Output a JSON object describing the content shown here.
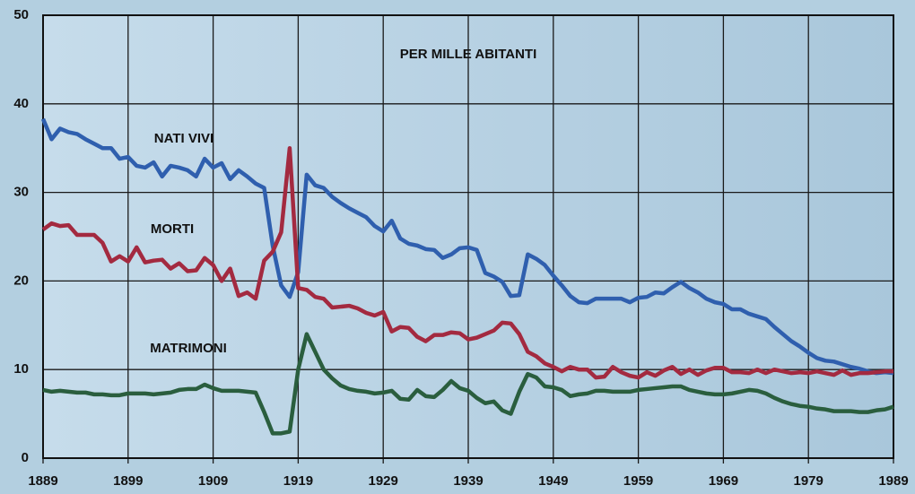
{
  "chart_data": {
    "type": "line",
    "annotations": [
      "PER MILLE ABITANTI"
    ],
    "x": [
      1889,
      1890,
      1891,
      1892,
      1893,
      1894,
      1895,
      1896,
      1897,
      1898,
      1899,
      1900,
      1901,
      1902,
      1903,
      1904,
      1905,
      1906,
      1907,
      1908,
      1909,
      1910,
      1911,
      1912,
      1913,
      1914,
      1915,
      1916,
      1917,
      1918,
      1919,
      1920,
      1921,
      1922,
      1923,
      1924,
      1925,
      1926,
      1927,
      1928,
      1929,
      1930,
      1931,
      1932,
      1933,
      1934,
      1935,
      1936,
      1937,
      1938,
      1939,
      1940,
      1941,
      1942,
      1943,
      1944,
      1945,
      1946,
      1947,
      1948,
      1949,
      1950,
      1951,
      1952,
      1953,
      1954,
      1955,
      1956,
      1957,
      1958,
      1959,
      1960,
      1961,
      1962,
      1963,
      1964,
      1965,
      1966,
      1967,
      1968,
      1969,
      1970,
      1971,
      1972,
      1973,
      1974,
      1975,
      1976,
      1977,
      1978,
      1979,
      1980,
      1981,
      1982,
      1983,
      1984,
      1985,
      1986,
      1987,
      1988,
      1989
    ],
    "series": [
      {
        "name": "NATI VIVI",
        "color": "#2f5fae",
        "values": [
          38.3,
          36,
          37.2,
          36.8,
          36.6,
          36,
          35.5,
          35,
          35,
          33.8,
          34,
          33,
          32.8,
          33.4,
          31.8,
          33,
          32.8,
          32.5,
          31.8,
          33.8,
          32.8,
          33.3,
          31.5,
          32.5,
          31.8,
          31,
          30.5,
          24,
          19.5,
          18.2,
          21,
          32,
          30.8,
          30.5,
          29.5,
          28.8,
          28.2,
          27.7,
          27.2,
          26.2,
          25.6,
          26.8,
          24.8,
          24.2,
          24,
          23.6,
          23.5,
          22.6,
          23,
          23.7,
          23.8,
          23.5,
          20.9,
          20.5,
          19.9,
          18.3,
          18.4,
          23,
          22.5,
          21.8,
          20.6,
          19.5,
          18.3,
          17.6,
          17.5,
          18,
          18,
          18,
          18,
          17.6,
          18.1,
          18.2,
          18.7,
          18.6,
          19.3,
          19.9,
          19.2,
          18.7,
          18,
          17.6,
          17.4,
          16.8,
          16.8,
          16.3,
          16,
          15.7,
          14.8,
          14,
          13.2,
          12.6,
          11.9,
          11.3,
          11,
          10.9,
          10.6,
          10.3,
          10.1,
          9.8,
          9.6,
          9.7,
          9.6
        ]
      },
      {
        "name": "MORTI",
        "color": "#a32a40",
        "values": [
          25.8,
          26.5,
          26.2,
          26.3,
          25.2,
          25.2,
          25.2,
          24.3,
          22.2,
          22.8,
          22.2,
          23.8,
          22.1,
          22.3,
          22.4,
          21.4,
          22,
          21.1,
          21.2,
          22.6,
          21.8,
          20,
          21.4,
          18.3,
          18.7,
          18,
          22.3,
          23.3,
          25.5,
          35,
          19.2,
          19,
          18.2,
          18,
          17,
          17.1,
          17.2,
          16.9,
          16.4,
          16.1,
          16.5,
          14.3,
          14.8,
          14.7,
          13.7,
          13.2,
          13.9,
          13.9,
          14.2,
          14.1,
          13.4,
          13.6,
          14,
          14.4,
          15.3,
          15.2,
          14,
          12,
          11.5,
          10.7,
          10.3,
          9.8,
          10.3,
          10,
          10,
          9.1,
          9.2,
          10.3,
          9.7,
          9.3,
          9.1,
          9.7,
          9.3,
          9.9,
          10.3,
          9.5,
          10,
          9.4,
          9.9,
          10.2,
          10.2,
          9.7,
          9.7,
          9.6,
          10,
          9.6,
          10,
          9.8,
          9.6,
          9.7,
          9.6,
          9.8,
          9.6,
          9.4,
          9.9,
          9.4,
          9.6,
          9.6,
          9.7,
          9.8,
          9.8
        ]
      },
      {
        "name": "MATRIMONI",
        "color": "#2a5e3e",
        "values": [
          7.7,
          7.5,
          7.6,
          7.5,
          7.4,
          7.4,
          7.2,
          7.2,
          7.1,
          7.1,
          7.3,
          7.3,
          7.3,
          7.2,
          7.3,
          7.4,
          7.7,
          7.8,
          7.8,
          8.3,
          7.9,
          7.6,
          7.6,
          7.6,
          7.5,
          7.4,
          5.2,
          2.8,
          2.8,
          3,
          10,
          14,
          12,
          10,
          9,
          8.2,
          7.8,
          7.6,
          7.5,
          7.3,
          7.4,
          7.6,
          6.7,
          6.6,
          7.7,
          7,
          6.9,
          7.7,
          8.7,
          7.9,
          7.6,
          6.8,
          6.2,
          6.4,
          5.4,
          5,
          7.5,
          9.5,
          9.1,
          8.1,
          8,
          7.7,
          7,
          7.2,
          7.3,
          7.6,
          7.6,
          7.5,
          7.5,
          7.5,
          7.7,
          7.8,
          7.9,
          8,
          8.1,
          8.1,
          7.7,
          7.5,
          7.3,
          7.2,
          7.2,
          7.3,
          7.5,
          7.7,
          7.6,
          7.3,
          6.8,
          6.4,
          6.1,
          5.9,
          5.8,
          5.6,
          5.5,
          5.3,
          5.3,
          5.3,
          5.2,
          5.2,
          5.4,
          5.5,
          5.8
        ]
      }
    ],
    "xlim": [
      1889,
      1989
    ],
    "xticks": [
      1889,
      1899,
      1909,
      1919,
      1929,
      1939,
      1949,
      1959,
      1969,
      1979,
      1989
    ],
    "ylim": [
      0,
      50
    ],
    "yticks": [
      0,
      10,
      20,
      30,
      40,
      50
    ],
    "grid": true
  }
}
